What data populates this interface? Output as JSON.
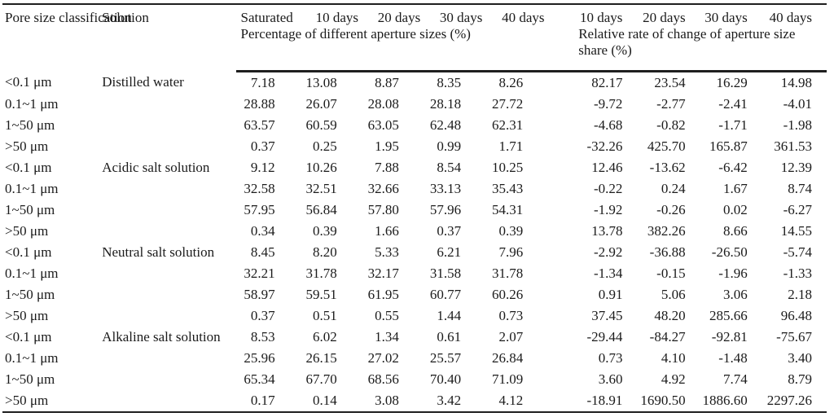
{
  "table": {
    "header": {
      "pore_size": "Pore size classification",
      "solution": "Solution",
      "saturated": "Saturated",
      "group1_days": [
        "10 days",
        "20 days",
        "30 days",
        "40 days"
      ],
      "group2_days": [
        "10 days",
        "20 days",
        "30 days",
        "40 days"
      ],
      "group1_caption": "Percentage of different aperture sizes (%)",
      "group2_caption": "Relative rate of change of aperture size share (%)"
    },
    "groups": [
      {
        "solution": "Distilled water",
        "rows": [
          {
            "pore": "<0.1 μm",
            "values": [
              "7.18",
              "13.08",
              "8.87",
              "8.35",
              "8.26",
              "82.17",
              "23.54",
              "16.29",
              "14.98"
            ]
          },
          {
            "pore": "0.1~1 μm",
            "values": [
              "28.88",
              "26.07",
              "28.08",
              "28.18",
              "27.72",
              "-9.72",
              "-2.77",
              "-2.41",
              "-4.01"
            ]
          },
          {
            "pore": "1~50 μm",
            "values": [
              "63.57",
              "60.59",
              "63.05",
              "62.48",
              "62.31",
              "-4.68",
              "-0.82",
              "-1.71",
              "-1.98"
            ]
          },
          {
            "pore": ">50 μm",
            "values": [
              "0.37",
              "0.25",
              "1.95",
              "0.99",
              "1.71",
              "-32.26",
              "425.70",
              "165.87",
              "361.53"
            ]
          }
        ]
      },
      {
        "solution": "Acidic salt solution",
        "rows": [
          {
            "pore": "<0.1 μm",
            "values": [
              "9.12",
              "10.26",
              "7.88",
              "8.54",
              "10.25",
              "12.46",
              "-13.62",
              "-6.42",
              "12.39"
            ]
          },
          {
            "pore": "0.1~1 μm",
            "values": [
              "32.58",
              "32.51",
              "32.66",
              "33.13",
              "35.43",
              "-0.22",
              "0.24",
              "1.67",
              "8.74"
            ]
          },
          {
            "pore": "1~50 μm",
            "values": [
              "57.95",
              "56.84",
              "57.80",
              "57.96",
              "54.31",
              "-1.92",
              "-0.26",
              "0.02",
              "-6.27"
            ]
          },
          {
            "pore": ">50 μm",
            "values": [
              "0.34",
              "0.39",
              "1.66",
              "0.37",
              "0.39",
              "13.78",
              "382.26",
              "8.66",
              "14.55"
            ]
          }
        ]
      },
      {
        "solution": "Neutral salt solution",
        "rows": [
          {
            "pore": "<0.1 μm",
            "values": [
              "8.45",
              "8.20",
              "5.33",
              "6.21",
              "7.96",
              "-2.92",
              "-36.88",
              "-26.50",
              "-5.74"
            ]
          },
          {
            "pore": "0.1~1 μm",
            "values": [
              "32.21",
              "31.78",
              "32.17",
              "31.58",
              "31.78",
              "-1.34",
              "-0.15",
              "-1.96",
              "-1.33"
            ]
          },
          {
            "pore": "1~50 μm",
            "values": [
              "58.97",
              "59.51",
              "61.95",
              "60.77",
              "60.26",
              "0.91",
              "5.06",
              "3.06",
              "2.18"
            ]
          },
          {
            "pore": ">50 μm",
            "values": [
              "0.37",
              "0.51",
              "0.55",
              "1.44",
              "0.73",
              "37.45",
              "48.20",
              "285.66",
              "96.48"
            ]
          }
        ]
      },
      {
        "solution": "Alkaline salt solution",
        "rows": [
          {
            "pore": "<0.1 μm",
            "values": [
              "8.53",
              "6.02",
              "1.34",
              "0.61",
              "2.07",
              "-29.44",
              "-84.27",
              "-92.81",
              "-75.67"
            ]
          },
          {
            "pore": "0.1~1 μm",
            "values": [
              "25.96",
              "26.15",
              "27.02",
              "25.57",
              "26.84",
              "0.73",
              "4.10",
              "-1.48",
              "3.40"
            ]
          },
          {
            "pore": "1~50 μm",
            "values": [
              "65.34",
              "67.70",
              "68.56",
              "70.40",
              "71.09",
              "3.60",
              "4.92",
              "7.74",
              "8.79"
            ]
          },
          {
            "pore": ">50 μm",
            "values": [
              "0.17",
              "0.14",
              "3.08",
              "3.42",
              "4.12",
              "-18.91",
              "1690.50",
              "1886.60",
              "2297.26"
            ]
          }
        ]
      }
    ]
  }
}
